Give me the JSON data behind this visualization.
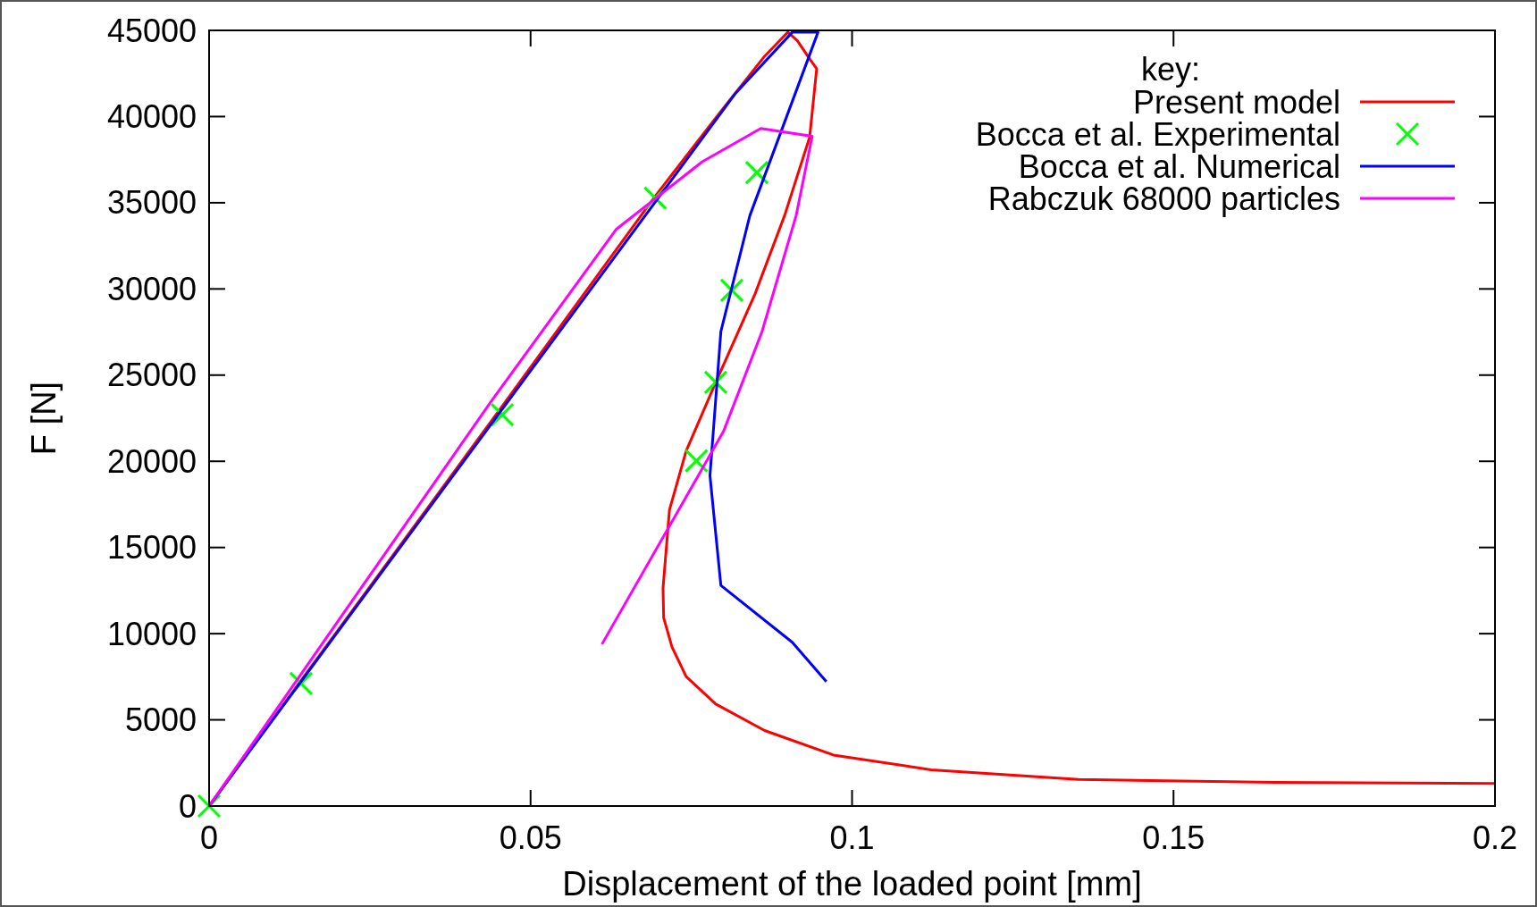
{
  "chart_data": {
    "type": "line",
    "xlabel": "Displacement of the loaded point [mm]",
    "ylabel": "F [N]",
    "legend_title": "key:",
    "legend": "top right",
    "grid": false,
    "xlim": [
      0,
      0.2
    ],
    "xticks": [
      0,
      0.05,
      0.1,
      0.15,
      0.2
    ],
    "ylim": [
      0,
      45000
    ],
    "yticks": [
      0,
      5000,
      10000,
      15000,
      20000,
      25000,
      30000,
      35000,
      40000,
      45000
    ],
    "series": [
      {
        "name": "Present model",
        "color": "#ff0000",
        "x": [
          0,
          0.045,
          0.0694,
          0.08,
          0.0864,
          0.09,
          0.0915,
          0.0935,
          0.0945,
          0.0934,
          0.0895,
          0.0849,
          0.0788,
          0.0742,
          0.0716,
          0.0706,
          0.0707,
          0.072,
          0.0742,
          0.0788,
          0.0864,
          0.0971,
          0.1123,
          0.1352,
          0.1657,
          0.2
        ],
        "values": [
          0,
          22900,
          35390,
          40500,
          43500,
          44900,
          44400,
          43300,
          42780,
          38800,
          34250,
          29700,
          24580,
          20600,
          17180,
          12630,
          10920,
          9220,
          7510,
          5920,
          4380,
          2960,
          2100,
          1540,
          1370,
          1310
        ]
      },
      {
        "name": "Bocca et al. Experimental",
        "color": "#00ff00",
        "type": "scatter",
        "marker": "cross",
        "x": [
          0,
          0.0143,
          0.0456,
          0.0694,
          0.0758,
          0.0788,
          0.0813,
          0.0852
        ],
        "values": [
          0,
          7110,
          22700,
          35270,
          20030,
          24580,
          29920,
          36750
        ]
      },
      {
        "name": "Bocca et al. Numerical",
        "color": "#0000ff",
        "x": [
          0,
          0.0819,
          0.0907,
          0.0947,
          0.0841,
          0.0796,
          0.0779,
          0.0796,
          0.0907,
          0.096
        ],
        "values": [
          0,
          41360,
          44890,
          44890,
          34250,
          27530,
          19170,
          12800,
          9500,
          7220
        ]
      },
      {
        "name": "Rabczuk 68000 particles",
        "color": "#ff00ff",
        "x": [
          0,
          0.0438,
          0.0633,
          0.0767,
          0.0858,
          0.0938,
          0.0913,
          0.086,
          0.08,
          0.0611
        ],
        "values": [
          0,
          23440,
          33450,
          37380,
          39310,
          38860,
          34250,
          27530,
          21730,
          9390
        ]
      }
    ]
  }
}
